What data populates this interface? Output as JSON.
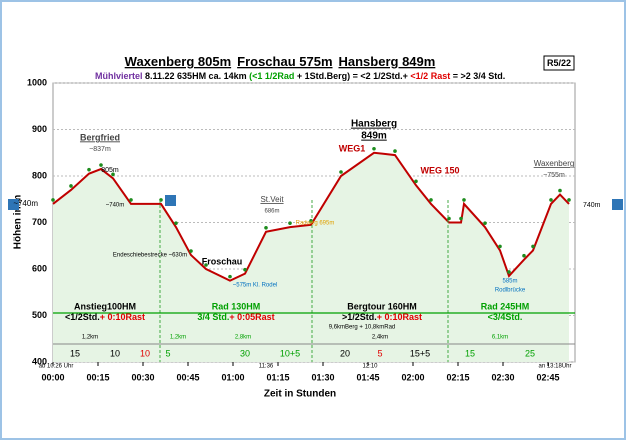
{
  "chart_data": {
    "type": "area",
    "title": [
      "Waxenberg 805m",
      "Froschau 575m",
      "Hansberg 849m"
    ],
    "badge": "R5/22",
    "subtitle": [
      {
        "text": "Mühlviertel",
        "color": "#7030a0"
      },
      {
        "text": " 8.11.22  635HM  ca. 14km ",
        "color": "#000000"
      },
      {
        "text": "(<1 1/2Rad",
        "color": "#00a000"
      },
      {
        "text": " + 1Std.Berg) = <2 1/2Std.+ ",
        "color": "#000000"
      },
      {
        "text": "<1/2 Rast",
        "color": "#e00000"
      },
      {
        "text": " = >2 3/4 Std.",
        "color": "#000000"
      }
    ],
    "ylabel": "Höhen in m",
    "xlabel": "Zeit in Stunden",
    "x": [
      0,
      6,
      12,
      16,
      20,
      26,
      36,
      41,
      46,
      51,
      59,
      64,
      71,
      79,
      86,
      96,
      107,
      114,
      121,
      126,
      132,
      136,
      137,
      144,
      149,
      152,
      157,
      160,
      166,
      169,
      172
    ],
    "values": [
      740,
      770,
      805,
      815,
      795,
      740,
      740,
      690,
      630,
      600,
      575,
      590,
      680,
      690,
      695,
      800,
      850,
      845,
      780,
      740,
      700,
      700,
      740,
      690,
      640,
      585,
      620,
      640,
      740,
      760,
      740
    ],
    "color": "#c00000",
    "fill": "#e6f4e4",
    "xlim": [
      0,
      174
    ],
    "ylim": [
      400,
      1000
    ],
    "yticks": [
      400,
      500,
      600,
      700,
      800,
      900,
      1000
    ],
    "xticks": [
      {
        "value": 0,
        "label": "00:00"
      },
      {
        "value": 15,
        "label": "00:15"
      },
      {
        "value": 30,
        "label": "00:30"
      },
      {
        "value": 45,
        "label": "00:45"
      },
      {
        "value": 60,
        "label": "01:00"
      },
      {
        "value": 75,
        "label": "01:15"
      },
      {
        "value": 90,
        "label": "01:30"
      },
      {
        "value": 105,
        "label": "01:45"
      },
      {
        "value": 120,
        "label": "02:00"
      },
      {
        "value": 135,
        "label": "02:15"
      },
      {
        "value": 150,
        "label": "02:30"
      },
      {
        "value": 165,
        "label": "02:45"
      }
    ],
    "grid": true,
    "sections": [
      {
        "name": "Anstieg100HM",
        "time": "<1/2Std.",
        "rest": "+ 0:10Rast",
        "color": "#000000"
      },
      {
        "name": "Rad 130HM",
        "time": "3/4 Std.",
        "rest": "+ 0:05Rast",
        "color": "#00a000"
      },
      {
        "name": "Bergtour 160HM",
        "time": ">1/2Std.",
        "rest": "+ 0:10Rast",
        "color": "#000000"
      },
      {
        "name": "Rad 245HM",
        "time": "<3/4Std.",
        "rest": null,
        "color": "#00a000"
      }
    ],
    "strip": [
      {
        "text": "15",
        "color": "#000000"
      },
      {
        "text": "10",
        "color": "#000000"
      },
      {
        "text": "10",
        "color": "#e00000"
      },
      {
        "text": "5",
        "color": "#00a000"
      },
      {
        "text": "30",
        "color": "#00a000"
      },
      {
        "text": "10+5",
        "color": "#00a000"
      },
      {
        "text": "20",
        "color": "#000000"
      },
      {
        "text": "5",
        "color": "#e00000"
      },
      {
        "text": "15+5",
        "color": "#000000"
      },
      {
        "text": "15",
        "color": "#00a000"
      },
      {
        "text": "25",
        "color": "#00a000"
      }
    ],
    "annotations": [
      {
        "text": "Bergfried",
        "color": "#444444"
      },
      {
        "text": "~837m",
        "color": "#444444"
      },
      {
        "text": "805m",
        "color": "#000000"
      },
      {
        "text": "~740m",
        "color": "#000000"
      },
      {
        "text": "~740m",
        "color": "#000000"
      },
      {
        "text": "Froschau",
        "color": "#000000"
      },
      {
        "text": "~575m Kl. Rodel",
        "color": "#0070c0"
      },
      {
        "text": "St.Veit",
        "color": "#444444"
      },
      {
        "text": "686m",
        "color": "#444444"
      },
      {
        "text": "Hansberg",
        "color": "#000000"
      },
      {
        "text": "849m",
        "color": "#000000"
      },
      {
        "text": "WEG1",
        "color": "#c00000"
      },
      {
        "text": "WEG 150",
        "color": "#c00000"
      },
      {
        "text": "Waxenberg",
        "color": "#444444"
      },
      {
        "text": "~755m",
        "color": "#444444"
      },
      {
        "text": "740m",
        "color": "#000000"
      },
      {
        "text": "Endeschiebestrecke ~630m",
        "color": "#000000"
      },
      {
        "text": "585m",
        "color": "#0070c0"
      },
      {
        "text": "Rodlbrücke",
        "color": "#0070c0"
      },
      {
        "text": "1,2km",
        "color": "#000000"
      },
      {
        "text": "1,2km",
        "color": "#00a000"
      },
      {
        "text": "2,8km",
        "color": "#00a000"
      },
      {
        "text": "2,4km",
        "color": "#000000"
      },
      {
        "text": "6,1km",
        "color": "#00a000"
      },
      {
        "text": "9,6kmBerg + 10,8kmRad",
        "color": "#000000"
      },
      {
        "text": "ab 10:26 Uhr",
        "color": "#000000"
      },
      {
        "text": "an 13:18Uhr",
        "color": "#000000"
      },
      {
        "text": "11:36",
        "color": "#000000"
      },
      {
        "text": "12:10",
        "color": "#000000"
      },
      {
        "text": "Radweg 695m",
        "color": "#e0a000"
      }
    ]
  }
}
